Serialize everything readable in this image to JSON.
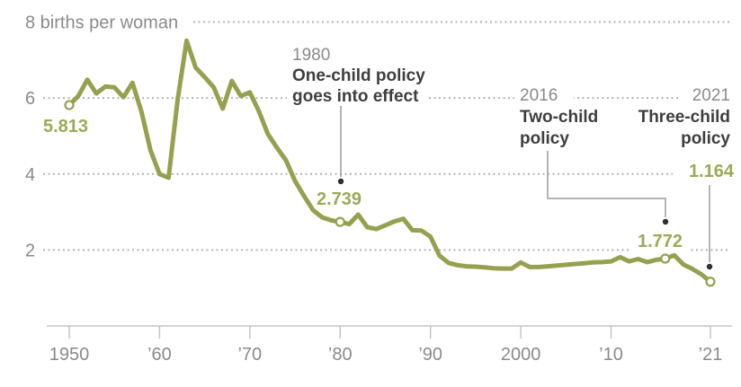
{
  "colors": {
    "background": "#ffffff",
    "line": "#96a04f",
    "value_label": "#9da957",
    "axis_text": "#8a8a8a",
    "annotation_text": "#3e3e3e",
    "gridline_dots": "#b3b3b3",
    "axis_line": "#c5c5c5",
    "pointer_line": "#9b9b9b",
    "pointer_dot": "#2e2e2e",
    "marker_fill": "#ffffff"
  },
  "chart_data": {
    "type": "line",
    "title": "",
    "legend": "none",
    "grid": "dotted horizontal",
    "y_axis": {
      "tick_values": [
        8,
        6,
        4,
        2
      ],
      "tick_labels": [
        "8 births per woman",
        "6",
        "4",
        "2"
      ],
      "range": [
        0,
        8
      ]
    },
    "x_axis": {
      "range": [
        1950,
        2021
      ],
      "ticks": [
        {
          "year": 1950,
          "label": "1950"
        },
        {
          "year": 1960,
          "label": "’60"
        },
        {
          "year": 1970,
          "label": "’70"
        },
        {
          "year": 1980,
          "label": "’80"
        },
        {
          "year": 1990,
          "label": "’90"
        },
        {
          "year": 2000,
          "label": "2000"
        },
        {
          "year": 2010,
          "label": "’10"
        },
        {
          "year": 2021,
          "label": "’21"
        }
      ]
    },
    "series": {
      "points": [
        [
          1950,
          5.813
        ],
        [
          1951,
          6.05
        ],
        [
          1952,
          6.48
        ],
        [
          1953,
          6.12
        ],
        [
          1954,
          6.3
        ],
        [
          1955,
          6.28
        ],
        [
          1956,
          6.02
        ],
        [
          1957,
          6.4
        ],
        [
          1958,
          5.64
        ],
        [
          1959,
          4.62
        ],
        [
          1960,
          4.0
        ],
        [
          1961,
          3.9
        ],
        [
          1962,
          5.95
        ],
        [
          1963,
          7.51
        ],
        [
          1964,
          6.8
        ],
        [
          1965,
          6.55
        ],
        [
          1966,
          6.28
        ],
        [
          1967,
          5.72
        ],
        [
          1968,
          6.45
        ],
        [
          1969,
          6.05
        ],
        [
          1970,
          6.15
        ],
        [
          1971,
          5.65
        ],
        [
          1972,
          5.05
        ],
        [
          1973,
          4.69
        ],
        [
          1974,
          4.36
        ],
        [
          1975,
          3.82
        ],
        [
          1976,
          3.42
        ],
        [
          1977,
          3.05
        ],
        [
          1978,
          2.86
        ],
        [
          1979,
          2.78
        ],
        [
          1980,
          2.739
        ],
        [
          1981,
          2.68
        ],
        [
          1982,
          2.93
        ],
        [
          1983,
          2.6
        ],
        [
          1984,
          2.55
        ],
        [
          1985,
          2.65
        ],
        [
          1986,
          2.75
        ],
        [
          1987,
          2.82
        ],
        [
          1988,
          2.52
        ],
        [
          1989,
          2.51
        ],
        [
          1990,
          2.35
        ],
        [
          1991,
          1.85
        ],
        [
          1992,
          1.66
        ],
        [
          1993,
          1.6
        ],
        [
          1994,
          1.57
        ],
        [
          1995,
          1.56
        ],
        [
          1996,
          1.54
        ],
        [
          1997,
          1.52
        ],
        [
          1998,
          1.51
        ],
        [
          1999,
          1.51
        ],
        [
          2000,
          1.67
        ],
        [
          2001,
          1.55
        ],
        [
          2002,
          1.55
        ],
        [
          2003,
          1.57
        ],
        [
          2004,
          1.59
        ],
        [
          2005,
          1.61
        ],
        [
          2006,
          1.63
        ],
        [
          2007,
          1.65
        ],
        [
          2008,
          1.67
        ],
        [
          2009,
          1.68
        ],
        [
          2010,
          1.7
        ],
        [
          2011,
          1.81
        ],
        [
          2012,
          1.7
        ],
        [
          2013,
          1.76
        ],
        [
          2014,
          1.68
        ],
        [
          2015,
          1.74
        ],
        [
          2016,
          1.772
        ],
        [
          2017,
          1.86
        ],
        [
          2018,
          1.62
        ],
        [
          2019,
          1.5
        ],
        [
          2020,
          1.36
        ],
        [
          2021,
          1.164
        ]
      ]
    },
    "highlighted_points": [
      {
        "year": 1950,
        "value": 5.813,
        "label": "5.813"
      },
      {
        "year": 1980,
        "value": 2.739,
        "label": "2.739"
      },
      {
        "year": 2016,
        "value": 1.772,
        "label": "1.772"
      },
      {
        "year": 2021,
        "value": 1.164,
        "label": "1.164"
      }
    ],
    "annotations": [
      {
        "year_label": "1980",
        "lines": [
          "One-child policy",
          "goes into effect"
        ]
      },
      {
        "year_label": "2016",
        "lines": [
          "Two-child",
          "policy"
        ]
      },
      {
        "year_label": "2021",
        "lines": [
          "Three-child",
          "policy"
        ]
      }
    ]
  }
}
